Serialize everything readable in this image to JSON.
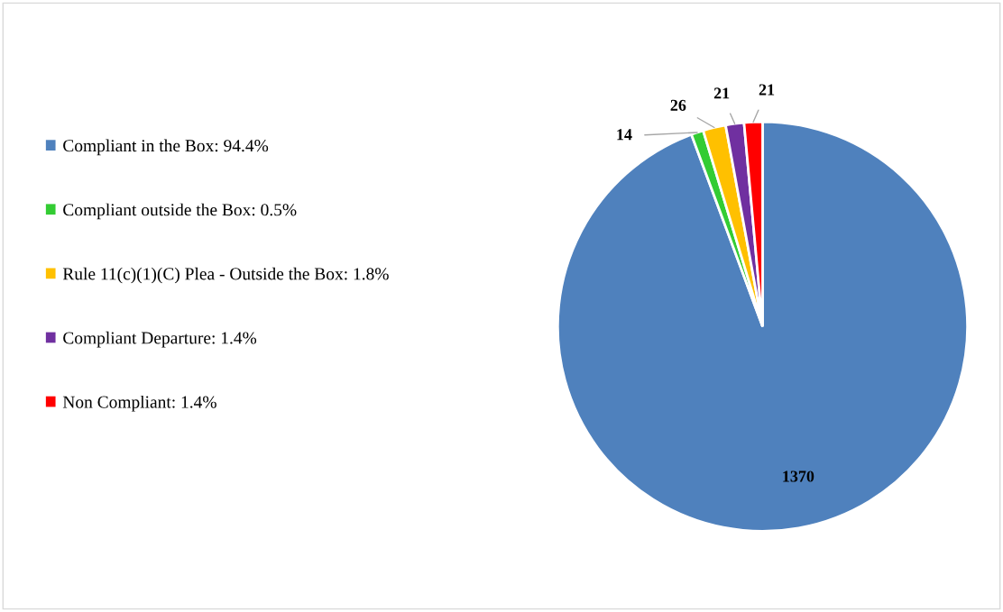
{
  "chart_data": {
    "type": "pie",
    "categories": [
      "Compliant in the Box: 94.4%",
      "Compliant outside the Box: 0.5%",
      "Rule 11(c)(1)(C) Plea - Outside the Box: 1.8%",
      "Compliant Departure: 1.4%",
      "Non Compliant: 1.4%"
    ],
    "values": [
      1370,
      14,
      26,
      21,
      21
    ],
    "colors": [
      "#4f81bd",
      "#33cc33",
      "#ffc000",
      "#7030a0",
      "#ff0000"
    ],
    "data_labels": true,
    "legend": "left"
  }
}
